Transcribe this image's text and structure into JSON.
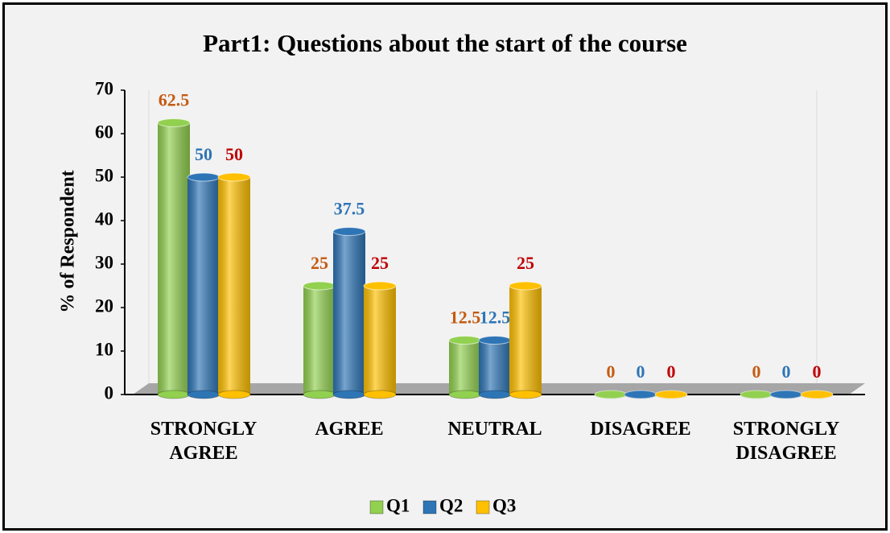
{
  "chart_data": {
    "type": "bar",
    "title": "Part1: Questions about the start of the course",
    "y_label": "% of Respondent",
    "categories": [
      "STRONGLY AGREE",
      "AGREE",
      "NEUTRAL",
      "DISAGREE",
      "STRONGLY DISAGREE"
    ],
    "series": [
      {
        "name": "Q1",
        "color": "#92d050",
        "label_color": "#c55a11",
        "values": [
          62.5,
          25,
          12.5,
          0,
          0
        ]
      },
      {
        "name": "Q2",
        "color": "#2e75b6",
        "label_color": "#2e75b6",
        "values": [
          50,
          37.5,
          12.5,
          0,
          0
        ]
      },
      {
        "name": "Q3",
        "color": "#ffc000",
        "label_color": "#c00000",
        "values": [
          50,
          25,
          25,
          0,
          0
        ]
      }
    ],
    "ylim": [
      0,
      70
    ],
    "yticks": [
      0,
      10,
      20,
      30,
      40,
      50,
      60,
      70
    ],
    "legend": "bottom"
  }
}
